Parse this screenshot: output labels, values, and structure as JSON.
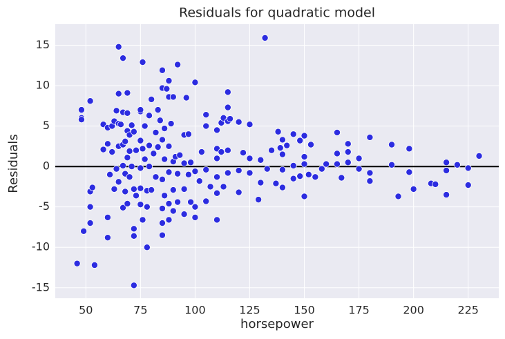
{
  "chart_data": {
    "type": "scatter",
    "title": "Residuals for quadratic model",
    "x_label": "horsepower",
    "y_label": "Residuals",
    "xlim": [
      36,
      239
    ],
    "ylim": [
      -16.3,
      17.6
    ],
    "xticks": [
      50,
      75,
      100,
      125,
      150,
      175,
      200,
      225
    ],
    "yticks": [
      -15,
      -10,
      -5,
      0,
      5,
      10,
      15
    ],
    "grid": true,
    "hline": 0,
    "series": [
      {
        "color": "#2c2ce0",
        "x": [
          46,
          48,
          48,
          48,
          49,
          52,
          52,
          52,
          52,
          53,
          54,
          58,
          58,
          60,
          60,
          60,
          60,
          61,
          62,
          62,
          63,
          63,
          64,
          64,
          65,
          65,
          65,
          65,
          65,
          66,
          67,
          67,
          67,
          67,
          67,
          68,
          68,
          68,
          69,
          69,
          69,
          69,
          69,
          70,
          70,
          70,
          71,
          71,
          72,
          72,
          72,
          72,
          72,
          73,
          73,
          75,
          75,
          75,
          75,
          75,
          75,
          76,
          76,
          76,
          77,
          77,
          78,
          78,
          78,
          79,
          79,
          79,
          80,
          80,
          81,
          82,
          82,
          83,
          83,
          84,
          85,
          85,
          85,
          85,
          85,
          85,
          85,
          86,
          86,
          86,
          87,
          88,
          88,
          88,
          88,
          88,
          88,
          89,
          90,
          90,
          90,
          90,
          91,
          92,
          92,
          92,
          93,
          95,
          95,
          95,
          95,
          96,
          97,
          97,
          98,
          98,
          100,
          100,
          100,
          100,
          102,
          103,
          105,
          105,
          105,
          105,
          107,
          110,
          110,
          110,
          110,
          110,
          110,
          112,
          112,
          113,
          113,
          115,
          115,
          115,
          115,
          115,
          116,
          120,
          120,
          120,
          122,
          125,
          125,
          125,
          129,
          130,
          130,
          132,
          133,
          135,
          137,
          138,
          139,
          140,
          140,
          140,
          140,
          142,
          145,
          145,
          145,
          148,
          148,
          150,
          150,
          150,
          150,
          152,
          153,
          155,
          158,
          160,
          165,
          165,
          165,
          167,
          170,
          170,
          170,
          175,
          175,
          180,
          180,
          180,
          190,
          190,
          193,
          198,
          198,
          200,
          208,
          210,
          215,
          215,
          215,
          220,
          225,
          225,
          230
        ],
        "values": [
          -12,
          7,
          6,
          5.8,
          -8,
          8.1,
          -3.1,
          -5,
          -7,
          -2.6,
          -12.2,
          5.2,
          2.1,
          4.8,
          2.8,
          -6.3,
          -8.8,
          -1,
          5,
          1.8,
          5.6,
          -2.8,
          6.9,
          -0.3,
          14.8,
          9,
          5.3,
          2.5,
          -1.9,
          5.2,
          13.4,
          6.7,
          2.7,
          0.1,
          -5.1,
          3.1,
          -3.1,
          -0.9,
          9.1,
          6.6,
          4.4,
          1.1,
          -4.6,
          3.9,
          1.9,
          -1.3,
          5.1,
          0,
          4.3,
          -2.8,
          -7.7,
          -8.6,
          -14.7,
          2,
          -3.6,
          6.8,
          7,
          3.2,
          -0.2,
          -2.7,
          -4.7,
          12.9,
          2.2,
          -6.6,
          5,
          0.9,
          -3,
          -5,
          -10,
          6.3,
          2.6,
          0,
          8.3,
          -2.9,
          1.6,
          4.2,
          -1.3,
          7,
          2.4,
          5.7,
          11.9,
          9.7,
          3.3,
          -1.6,
          -5.2,
          -7,
          -8.5,
          4.7,
          0.9,
          -3.6,
          9.6,
          10.6,
          8.6,
          2.5,
          -0.7,
          -4.6,
          -6.6,
          5.3,
          8.6,
          0.6,
          -2.9,
          -5.5,
          1.2,
          12.6,
          -0.9,
          -4.4,
          1.4,
          3.9,
          0.4,
          -2.8,
          -5.9,
          8.5,
          4,
          -1,
          0.5,
          -4.4,
          10.4,
          -0.6,
          -5,
          -6.3,
          -1.8,
          1.8,
          6.4,
          5,
          -0.4,
          -4.3,
          -2.5,
          4.5,
          2.2,
          1,
          -1.3,
          -3.3,
          -6.6,
          5.4,
          1.8,
          6,
          -2.5,
          9.2,
          7.3,
          5.6,
          2,
          -0.8,
          5.9,
          5.5,
          -0.5,
          -3.2,
          1.7,
          5.2,
          1,
          -0.8,
          -4.1,
          0.8,
          -2,
          15.9,
          -0.3,
          2,
          -2.1,
          4.3,
          2.3,
          3.3,
          1.5,
          -0.4,
          -2.6,
          2.6,
          4,
          0.1,
          -1.5,
          3.2,
          -1.2,
          3.8,
          1.2,
          0.3,
          -3.7,
          -1,
          2.7,
          -1.3,
          -0.3,
          0.3,
          4.2,
          1.6,
          0.3,
          -1.4,
          2.8,
          1.8,
          0.5,
          1,
          -0.3,
          3.6,
          -0.8,
          -1.8,
          2.7,
          0.2,
          -3.7,
          2.2,
          -0.7,
          -2.8,
          -2.1,
          -2.2,
          0.5,
          -0.5,
          -3.5,
          0.2,
          -0.2,
          -2.3,
          1.3
        ]
      }
    ]
  }
}
